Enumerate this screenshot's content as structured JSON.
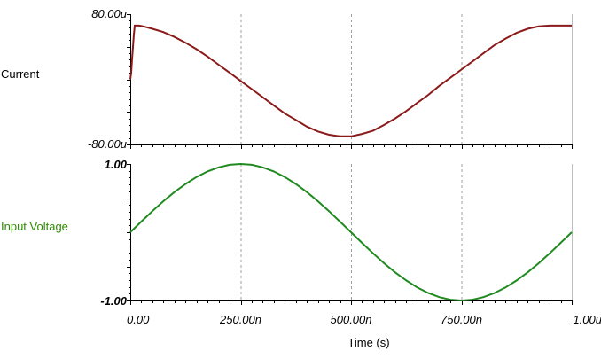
{
  "chart_data": [
    {
      "type": "line",
      "title": "",
      "xlabel": "",
      "ylabel": "Current",
      "ylim": [
        -80,
        80
      ],
      "xlim": [
        0,
        1000
      ],
      "grid": "vertical dashed",
      "y_tick_labels": [
        "80.00u",
        "-80.00u"
      ],
      "y_tick_bold": false,
      "series": [
        {
          "name": "Current",
          "color": "#8b1a1a",
          "x": [
            0,
            2,
            4,
            8,
            10,
            20,
            30,
            50,
            75,
            100,
            125,
            150,
            175,
            200,
            225,
            250,
            275,
            300,
            325,
            350,
            375,
            400,
            425,
            450,
            475,
            500,
            525,
            550,
            575,
            600,
            625,
            650,
            675,
            700,
            725,
            750,
            775,
            800,
            825,
            850,
            875,
            900,
            925,
            950,
            975,
            1000
          ],
          "y": [
            0,
            8,
            25,
            55,
            66,
            66,
            65,
            62,
            58,
            52,
            45,
            37,
            28,
            18,
            8,
            -2,
            -12,
            -22,
            -32,
            -42,
            -50,
            -58,
            -64,
            -68,
            -70,
            -70,
            -67,
            -63,
            -56,
            -48,
            -39,
            -29,
            -19,
            -8,
            2,
            12,
            22,
            32,
            42,
            50,
            57,
            62,
            65,
            66,
            66,
            66
          ]
        }
      ]
    },
    {
      "type": "line",
      "title": "",
      "xlabel": "Time (s)",
      "ylabel": "Input Voltage",
      "ylim": [
        -1,
        1
      ],
      "xlim": [
        0,
        1000
      ],
      "grid": "vertical dashed",
      "y_tick_labels": [
        "1.00",
        "-1.00"
      ],
      "y_tick_bold": true,
      "x_tick_labels": [
        "0.00",
        "250.00n",
        "500.00n",
        "750.00n",
        "1.00u"
      ],
      "x_ticks": [
        0,
        250,
        500,
        750,
        1000
      ],
      "series": [
        {
          "name": "Input Voltage",
          "color": "#1f8a1f",
          "x": [
            0,
            25,
            50,
            75,
            100,
            125,
            150,
            175,
            200,
            225,
            250,
            275,
            300,
            325,
            350,
            375,
            400,
            425,
            450,
            475,
            500,
            525,
            550,
            575,
            600,
            625,
            650,
            675,
            700,
            725,
            750,
            775,
            800,
            825,
            850,
            875,
            900,
            925,
            950,
            975,
            1000
          ],
          "y": [
            0,
            0.156,
            0.309,
            0.454,
            0.588,
            0.707,
            0.809,
            0.891,
            0.951,
            0.988,
            1.0,
            0.988,
            0.951,
            0.891,
            0.809,
            0.707,
            0.588,
            0.454,
            0.309,
            0.156,
            0,
            -0.156,
            -0.309,
            -0.454,
            -0.588,
            -0.707,
            -0.809,
            -0.891,
            -0.951,
            -0.988,
            -1.0,
            -0.988,
            -0.951,
            -0.891,
            -0.809,
            -0.707,
            -0.588,
            -0.454,
            -0.309,
            -0.156,
            0
          ]
        }
      ]
    }
  ],
  "colors": {
    "current_line": "#8b1a1a",
    "voltage_line": "#1f8a1f",
    "voltage_label": "#2e8b00",
    "current_label": "#000000",
    "grid": "#a0a0a0",
    "axis": "#000000",
    "frame": "#bdbdbd"
  }
}
